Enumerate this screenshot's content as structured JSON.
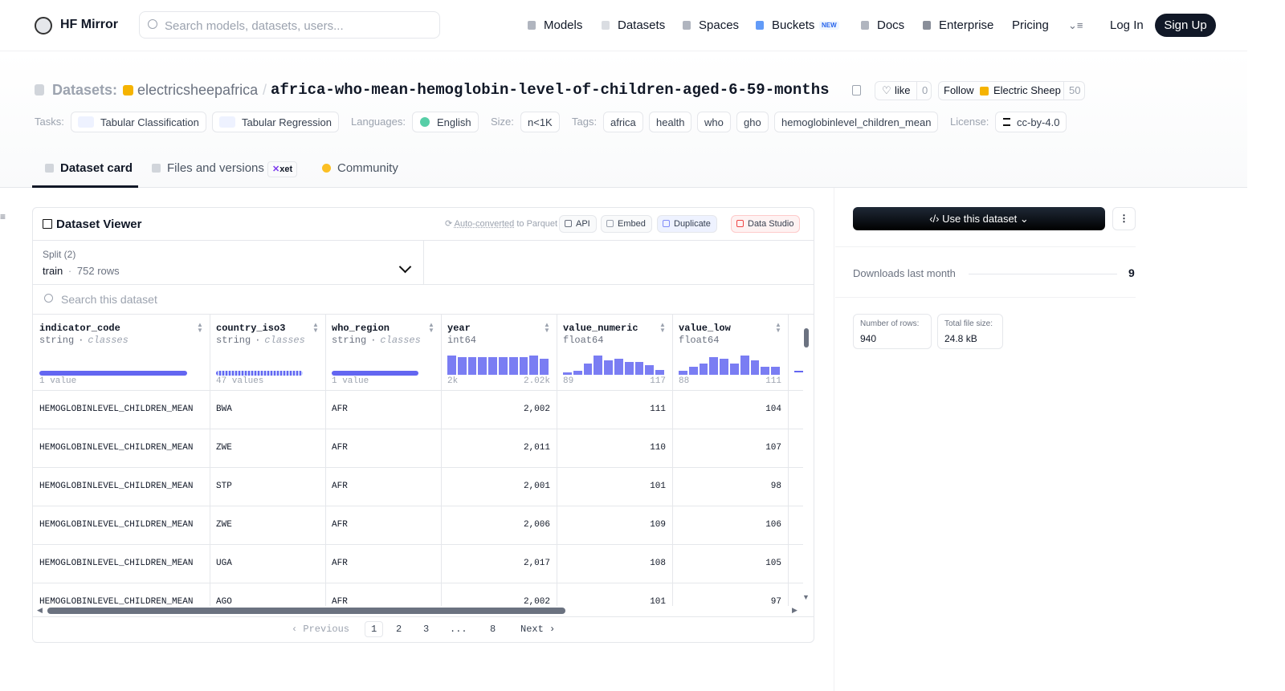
{
  "nav": {
    "logo": "HF Mirror",
    "search": "Search models, datasets, users...",
    "links": [
      "Models",
      "Datasets",
      "Spaces",
      "Buckets",
      "Docs",
      "Enterprise",
      "Pricing"
    ],
    "badge": "NEW",
    "login": "Log In",
    "signup": "Sign Up"
  },
  "header": {
    "kind": "Datasets:",
    "owner": "electricsheepafrica",
    "slash": "/",
    "name": "africa-who-mean-hemoglobin-level-of-children-aged-6-59-months",
    "like": "like",
    "likes": "0",
    "follow": "Follow",
    "org": "Electric Sheep",
    "followers": "50",
    "groups": [
      {
        "label": "Tasks:",
        "items": [
          "Tabular Classification",
          "Tabular Regression"
        ]
      },
      {
        "label": "Languages:",
        "items": [
          "English"
        ]
      },
      {
        "label": "Size:",
        "items": [
          "n<1K"
        ]
      },
      {
        "label": "Tags:",
        "items": [
          "africa",
          "health",
          "who",
          "gho",
          "hemoglobinlevel_children_mean"
        ]
      },
      {
        "label": "License:",
        "items": [
          "cc-by-4.0"
        ]
      }
    ]
  },
  "tabs": {
    "items": [
      "Dataset card",
      "Files and versions",
      "Community"
    ],
    "xet": "xet"
  },
  "viewer": {
    "title": "Dataset Viewer",
    "converted": "Auto-converted",
    "parquet": "to Parquet",
    "buttons": [
      "API",
      "Embed",
      "Duplicate",
      "Data Studio"
    ],
    "split": "Split (2)",
    "split_name": "train",
    "sep": "·",
    "split_rows": "752 rows",
    "search": "Search this dataset",
    "columns": [
      {
        "name": "indicator_code",
        "type": "string",
        "kind": "classes",
        "left": "1 value"
      },
      {
        "name": "country_iso3",
        "type": "string",
        "kind": "classes",
        "left": "47 values"
      },
      {
        "name": "who_region",
        "type": "string",
        "kind": "classes",
        "left": "1 value"
      },
      {
        "name": "year",
        "type": "int64",
        "left": "2k",
        "right": "2.02k",
        "histogram": [
          22,
          20,
          20,
          20,
          20,
          20,
          20,
          20,
          22,
          18
        ]
      },
      {
        "name": "value_numeric",
        "type": "float64",
        "left": "89",
        "right": "117",
        "histogram": [
          3,
          5,
          14,
          24,
          18,
          20,
          16,
          16,
          12,
          6
        ]
      },
      {
        "name": "value_low",
        "type": "float64",
        "left": "88",
        "right": "111",
        "histogram": [
          5,
          10,
          14,
          22,
          20,
          14,
          24,
          18,
          10,
          10
        ]
      }
    ],
    "rows": [
      [
        "HEMOGLOBINLEVEL_CHILDREN_MEAN",
        "BWA",
        "AFR",
        "2,002",
        "111",
        "104"
      ],
      [
        "HEMOGLOBINLEVEL_CHILDREN_MEAN",
        "ZWE",
        "AFR",
        "2,011",
        "110",
        "107"
      ],
      [
        "HEMOGLOBINLEVEL_CHILDREN_MEAN",
        "STP",
        "AFR",
        "2,001",
        "101",
        "98"
      ],
      [
        "HEMOGLOBINLEVEL_CHILDREN_MEAN",
        "ZWE",
        "AFR",
        "2,006",
        "109",
        "106"
      ],
      [
        "HEMOGLOBINLEVEL_CHILDREN_MEAN",
        "UGA",
        "AFR",
        "2,017",
        "108",
        "105"
      ],
      [
        "HEMOGLOBINLEVEL_CHILDREN_MEAN",
        "AGO",
        "AFR",
        "2,002",
        "101",
        "97"
      ]
    ],
    "pagination": [
      "Previous",
      "1",
      "2",
      "3",
      "...",
      "8",
      "Next"
    ]
  },
  "sidebar": {
    "use": "Use this dataset",
    "downloads_label": "Downloads last month",
    "downloads": "9",
    "stats": [
      {
        "label": "Number of rows:",
        "value": "940"
      },
      {
        "label": "Total file size:",
        "value": "24.8 kB"
      }
    ]
  }
}
